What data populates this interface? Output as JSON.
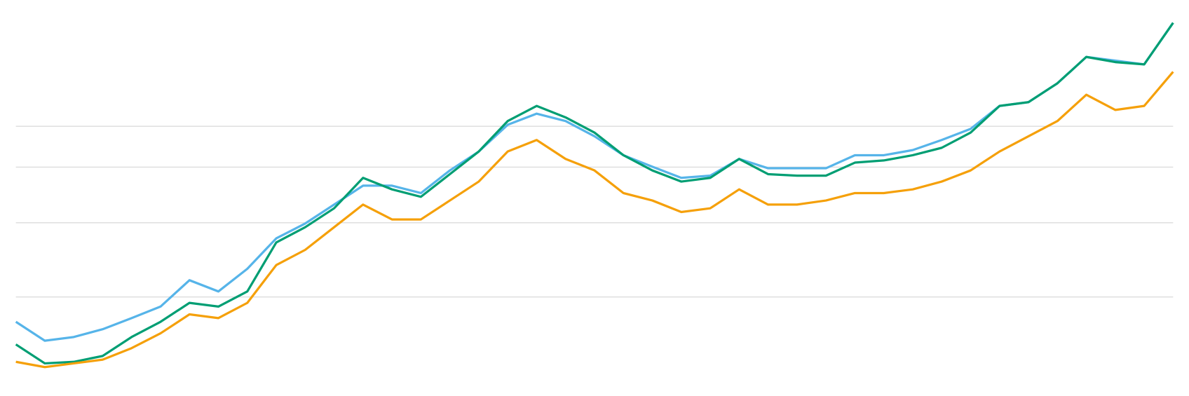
{
  "chart_data": {
    "type": "line",
    "ylim": [
      0,
      100
    ],
    "yticks": [
      22,
      42,
      57,
      68
    ],
    "grid": true,
    "series": [
      {
        "color": "#56b4e9",
        "values": [
          15.3,
          10.2,
          11.2,
          13.3,
          16.3,
          19.4,
          26.5,
          23.5,
          29.6,
          37.8,
          41.8,
          46.9,
          52.0,
          52.0,
          50.0,
          56.1,
          61.2,
          68.4,
          71.4,
          69.4,
          65.3,
          60.2,
          57.1,
          54.1,
          54.7,
          59.2,
          56.7,
          56.7,
          56.7,
          60.2,
          60.2,
          61.6,
          64.3,
          67.3,
          73.5,
          74.5,
          79.6,
          86.7,
          85.7,
          84.7,
          95.9
        ]
      },
      {
        "color": "#009e73",
        "values": [
          9.2,
          4.1,
          4.5,
          6.1,
          11.2,
          15.3,
          20.4,
          19.4,
          23.5,
          36.7,
          40.8,
          45.9,
          54.1,
          51.0,
          49.0,
          55.1,
          61.2,
          69.4,
          73.5,
          70.4,
          66.3,
          60.2,
          56.1,
          53.1,
          54.1,
          59.2,
          55.1,
          54.7,
          54.7,
          58.2,
          58.8,
          60.2,
          62.2,
          66.3,
          73.5,
          74.5,
          79.6,
          86.7,
          85.3,
          84.7,
          95.9
        ]
      },
      {
        "color": "#f5a00a",
        "values": [
          4.5,
          3.1,
          4.1,
          5.1,
          8.2,
          12.2,
          17.3,
          16.3,
          20.4,
          30.6,
          34.7,
          40.8,
          46.9,
          42.9,
          42.9,
          48.0,
          53.1,
          61.2,
          64.3,
          59.2,
          56.1,
          50.0,
          48.0,
          44.9,
          45.9,
          51.0,
          46.9,
          46.9,
          48.0,
          50.0,
          50.0,
          51.0,
          53.1,
          56.1,
          61.2,
          65.3,
          69.4,
          76.5,
          72.4,
          73.5,
          82.7
        ]
      }
    ]
  }
}
